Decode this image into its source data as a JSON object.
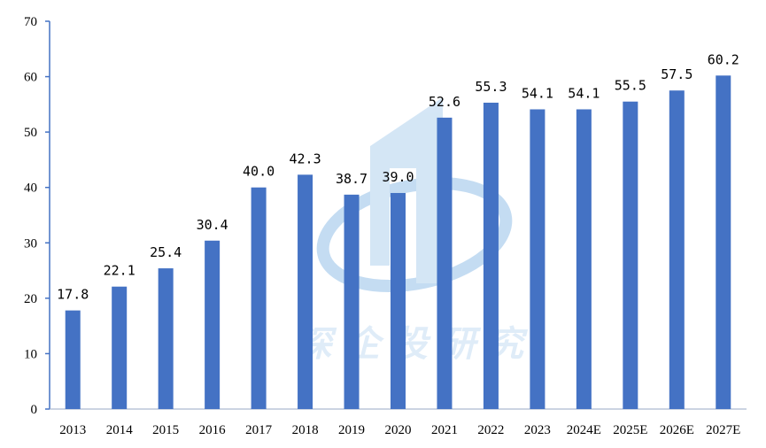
{
  "chart_data": {
    "type": "bar",
    "title": "",
    "xlabel": "",
    "ylabel": "",
    "ylim": [
      0,
      70
    ],
    "yticks": [
      0,
      10,
      20,
      30,
      40,
      50,
      60,
      70
    ],
    "categories": [
      "2013",
      "2014",
      "2015",
      "2016",
      "2017",
      "2018",
      "2019",
      "2020",
      "2021",
      "2022",
      "2023",
      "2024E",
      "2025E",
      "2026E",
      "2027E"
    ],
    "values": [
      17.8,
      22.1,
      25.4,
      30.4,
      40.0,
      42.3,
      38.7,
      39.0,
      52.6,
      55.3,
      54.1,
      54.1,
      55.5,
      57.5,
      60.2
    ],
    "data_labels": [
      "17.8",
      "22.1",
      "25.4",
      "30.4",
      "40.0",
      "42.3",
      "38.7",
      "39.0",
      "52.6",
      "55.3",
      "54.1",
      "54.1",
      "55.5",
      "57.5",
      "60.2"
    ],
    "bar_color": "#4472c4",
    "axis_color": "#4472c4",
    "grid": false,
    "legend": "none"
  },
  "watermark": {
    "text": "深企投研究",
    "color": "#9ec6ea"
  }
}
